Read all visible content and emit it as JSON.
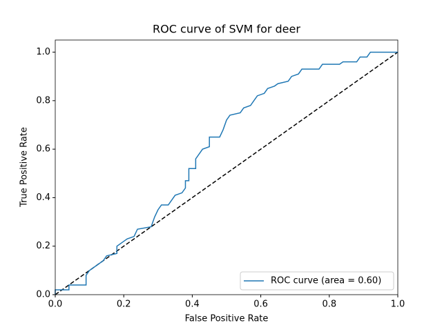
{
  "chart_data": {
    "type": "line",
    "title": "ROC curve of SVM for deer",
    "x_label": "False Positive Rate",
    "y_label": "True Positive Rate",
    "xlim": [
      0,
      1
    ],
    "ylim": [
      0,
      1.05
    ],
    "xticks": [
      {
        "value": 0,
        "label": "0.0"
      },
      0.2,
      0.4,
      0.6,
      0.8,
      {
        "value": 1,
        "label": "1.0"
      }
    ],
    "yticks": [
      {
        "value": 0,
        "label": "0.0"
      },
      0.2,
      0.4,
      0.6,
      0.8,
      {
        "value": 1,
        "label": "1.0"
      }
    ],
    "legend": "lower right",
    "series": [
      {
        "name": "ROC curve (area = 0.60)",
        "color": "#1f77b4",
        "x": [
          0,
          0,
          0.04,
          0.04,
          0.09,
          0.09,
          0.1,
          0.12,
          0.14,
          0.15,
          0.18,
          0.18,
          0.2,
          0.21,
          0.23,
          0.24,
          0.28,
          0.29,
          0.3,
          0.31,
          0.33,
          0.34,
          0.35,
          0.37,
          0.38,
          0.38,
          0.39,
          0.39,
          0.41,
          0.41,
          0.42,
          0.43,
          0.45,
          0.45,
          0.48,
          0.49,
          0.5,
          0.51,
          0.54,
          0.55,
          0.57,
          0.58,
          0.59,
          0.61,
          0.62,
          0.64,
          0.65,
          0.68,
          0.69,
          0.71,
          0.72,
          0.77,
          0.78,
          0.83,
          0.84,
          0.88,
          0.89,
          0.91,
          0.92,
          1.0
        ],
        "values": [
          0,
          0.02,
          0.02,
          0.04,
          0.04,
          0.08,
          0.1,
          0.12,
          0.14,
          0.16,
          0.17,
          0.2,
          0.22,
          0.23,
          0.24,
          0.27,
          0.28,
          0.32,
          0.35,
          0.37,
          0.37,
          0.39,
          0.41,
          0.42,
          0.44,
          0.47,
          0.47,
          0.52,
          0.52,
          0.56,
          0.58,
          0.6,
          0.61,
          0.65,
          0.65,
          0.68,
          0.72,
          0.74,
          0.75,
          0.77,
          0.78,
          0.8,
          0.82,
          0.83,
          0.85,
          0.86,
          0.87,
          0.88,
          0.9,
          0.91,
          0.93,
          0.93,
          0.95,
          0.95,
          0.96,
          0.96,
          0.98,
          0.98,
          1.0,
          1.0
        ]
      }
    ],
    "reference_line": {
      "x": [
        0,
        1
      ],
      "values": [
        0,
        1
      ],
      "color": "#000000"
    }
  }
}
